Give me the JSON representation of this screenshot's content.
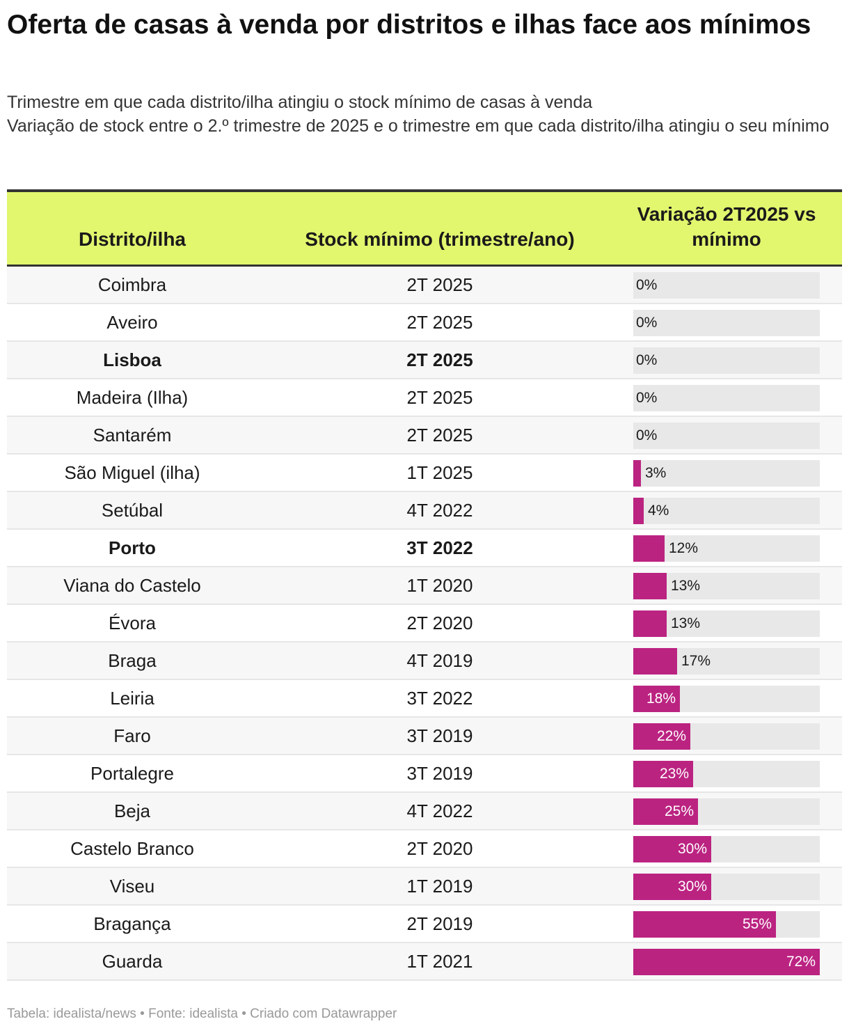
{
  "title": "Oferta de casas à venda por distritos e ilhas face aos mínimos",
  "subtitle": [
    "Trimestre em que cada distrito/ilha atingiu o stock mínimo de casas à venda",
    "Variação de stock entre o 2.º trimestre de 2025 e o trimestre em que cada distrito/ilha atingiu o seu mínimo"
  ],
  "columns": {
    "district": "Distrito/ilha",
    "minimum": "Stock mínimo (trimestre/ano)",
    "variation": "Variação 2T2025 vs mínimo"
  },
  "footer": "Tabela: idealista/news • Fonte: idealista • Criado com Datawrapper",
  "colors": {
    "bar": "#bb2381",
    "header_bg": "#e2f66e",
    "bar_track": "#e8e8e8"
  },
  "chart_data": {
    "type": "table",
    "value_unit": "%",
    "xlim": [
      0,
      72
    ],
    "rows": [
      {
        "district": "Coimbra",
        "minimum": "2T 2025",
        "variation": 0,
        "label": "0%",
        "bold": false
      },
      {
        "district": "Aveiro",
        "minimum": "2T 2025",
        "variation": 0,
        "label": "0%",
        "bold": false
      },
      {
        "district": "Lisboa",
        "minimum": "2T 2025",
        "variation": 0,
        "label": "0%",
        "bold": true
      },
      {
        "district": "Madeira (Ilha)",
        "minimum": "2T 2025",
        "variation": 0,
        "label": "0%",
        "bold": false
      },
      {
        "district": "Santarém",
        "minimum": "2T 2025",
        "variation": 0,
        "label": "0%",
        "bold": false
      },
      {
        "district": "São Miguel (ilha)",
        "minimum": "1T 2025",
        "variation": 3,
        "label": "3%",
        "bold": false
      },
      {
        "district": "Setúbal",
        "minimum": "4T 2022",
        "variation": 4,
        "label": "4%",
        "bold": false
      },
      {
        "district": "Porto",
        "minimum": "3T 2022",
        "variation": 12,
        "label": "12%",
        "bold": true
      },
      {
        "district": "Viana do Castelo",
        "minimum": "1T 2020",
        "variation": 13,
        "label": "13%",
        "bold": false
      },
      {
        "district": "Évora",
        "minimum": "2T 2020",
        "variation": 13,
        "label": "13%",
        "bold": false
      },
      {
        "district": "Braga",
        "minimum": "4T 2019",
        "variation": 17,
        "label": "17%",
        "bold": false
      },
      {
        "district": "Leiria",
        "minimum": "3T 2022",
        "variation": 18,
        "label": "18%",
        "bold": false
      },
      {
        "district": "Faro",
        "minimum": "3T 2019",
        "variation": 22,
        "label": "22%",
        "bold": false
      },
      {
        "district": "Portalegre",
        "minimum": "3T 2019",
        "variation": 23,
        "label": "23%",
        "bold": false
      },
      {
        "district": "Beja",
        "minimum": "4T 2022",
        "variation": 25,
        "label": "25%",
        "bold": false
      },
      {
        "district": "Castelo Branco",
        "minimum": "2T 2020",
        "variation": 30,
        "label": "30%",
        "bold": false
      },
      {
        "district": "Viseu",
        "minimum": "1T 2019",
        "variation": 30,
        "label": "30%",
        "bold": false
      },
      {
        "district": "Bragança",
        "minimum": "2T 2019",
        "variation": 55,
        "label": "55%",
        "bold": false
      },
      {
        "district": "Guarda",
        "minimum": "1T 2021",
        "variation": 72,
        "label": "72%",
        "bold": false
      }
    ]
  }
}
